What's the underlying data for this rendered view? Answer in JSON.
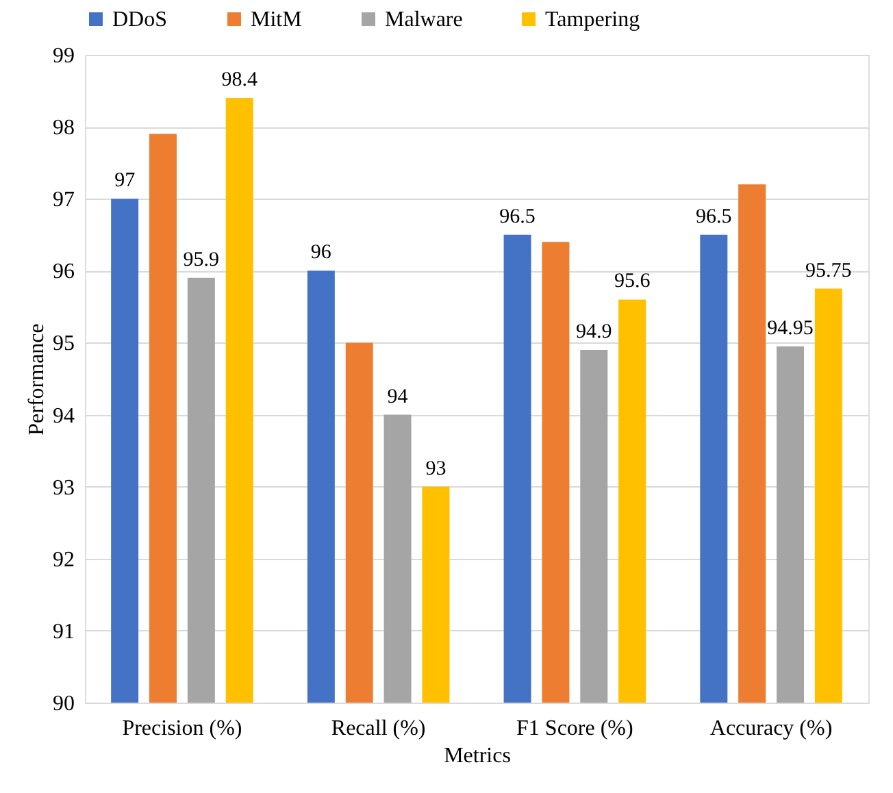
{
  "chart_data": {
    "type": "bar",
    "xlabel": "Metrics",
    "ylabel": "Performance",
    "categories": [
      "Precision (%)",
      "Recall (%)",
      "F1 Score (%)",
      "Accuracy (%)"
    ],
    "series": [
      {
        "name": "DDoS",
        "color": "#4472c4",
        "values": [
          97,
          96,
          96.5,
          96.5
        ],
        "value_labels": [
          "97",
          "96",
          "96.5",
          "96.5"
        ]
      },
      {
        "name": "MitM",
        "color": "#ed7d31",
        "values": [
          97.9,
          95,
          96.4,
          97.2
        ],
        "value_labels": [
          null,
          null,
          null,
          null
        ]
      },
      {
        "name": "Malware",
        "color": "#a5a5a5",
        "values": [
          95.9,
          94,
          94.9,
          94.95
        ],
        "value_labels": [
          "95.9",
          "94",
          "94.9",
          "94.95"
        ]
      },
      {
        "name": "Tampering",
        "color": "#ffc000",
        "values": [
          98.4,
          93,
          95.6,
          95.75
        ],
        "value_labels": [
          "98.4",
          "93",
          "95.6",
          "95.75"
        ]
      }
    ],
    "ylim": [
      90,
      99
    ],
    "yticks": [
      90,
      91,
      92,
      93,
      94,
      95,
      96,
      97,
      98,
      99
    ],
    "grid": "y",
    "legend": "top"
  }
}
